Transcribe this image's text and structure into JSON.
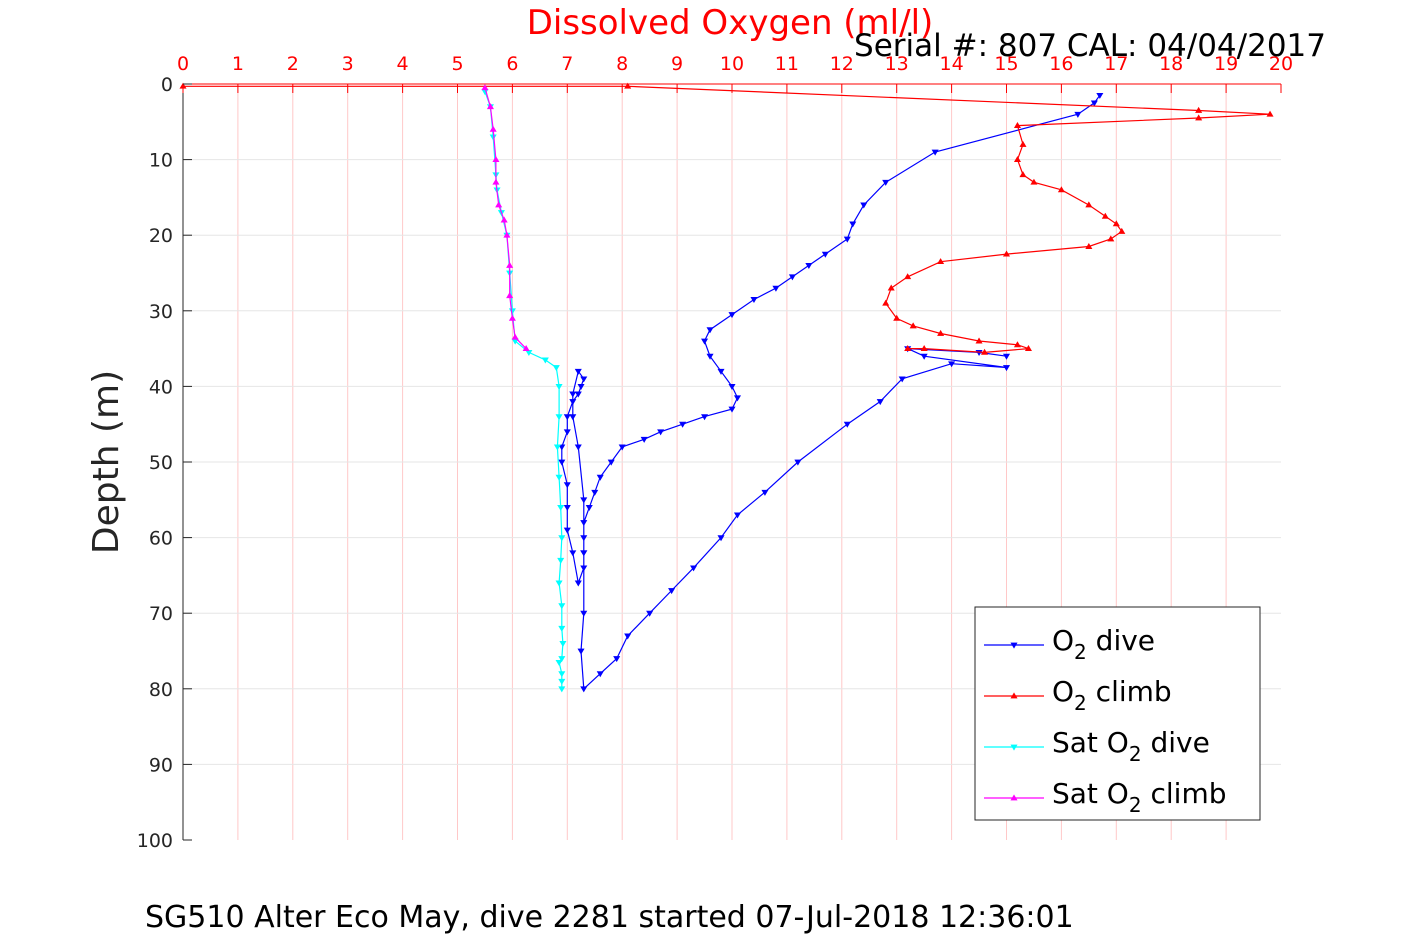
{
  "chart_data": {
    "type": "line",
    "title": "Dissolved Oxygen (ml/l)",
    "subtitle": "Serial #: 807  CAL: 04/04/2017",
    "ylabel": "Depth (m)",
    "footer": "SG510 Alter Eco May, dive 2281 started 07-Jul-2018 12:36:01",
    "xlim": [
      0,
      20
    ],
    "ylim": [
      0,
      100
    ],
    "y_reversed": true,
    "x_axis_position": "top",
    "xticks": [
      "0",
      "1",
      "2",
      "3",
      "4",
      "5",
      "6",
      "7",
      "8",
      "9",
      "10",
      "11",
      "12",
      "13",
      "14",
      "15",
      "16",
      "17",
      "18",
      "19",
      "20"
    ],
    "yticks": [
      "0",
      "10",
      "20",
      "30",
      "40",
      "50",
      "60",
      "70",
      "80",
      "90",
      "100"
    ],
    "grid": true,
    "legend_position": "bottom-right",
    "colors": {
      "title": "#ff0000",
      "x_axis": "#ff0000",
      "y_axis": "#262626",
      "grid": "#ffc8c8",
      "o2_dive": "#0000ff",
      "o2_climb": "#ff0000",
      "sat_dive": "#00ffff",
      "sat_climb": "#ff00ff"
    },
    "series": [
      {
        "key": "o2_dive",
        "legend": {
          "pre": "O",
          "sub": "2",
          "post": " dive"
        },
        "marker": "triangle-down",
        "x": [
          16.7,
          16.6,
          16.3,
          13.7,
          12.8,
          12.4,
          12.2,
          12.1,
          11.7,
          11.4,
          11.1,
          10.8,
          10.4,
          10.0,
          9.6,
          9.5,
          9.6,
          9.8,
          10.0,
          10.1,
          10.0,
          9.5,
          9.1,
          8.7,
          8.4,
          8.0,
          7.8,
          7.6,
          7.5,
          7.4,
          7.3,
          7.3,
          7.3,
          7.3,
          7.2,
          7.1,
          7.0,
          7.0,
          7.0,
          6.9,
          6.9,
          7.0,
          7.0,
          7.1,
          7.2,
          7.25,
          7.3,
          7.2,
          7.1,
          7.1,
          7.2,
          7.3,
          7.3,
          7.3,
          7.25,
          7.3,
          7.6,
          7.9,
          8.1,
          8.5,
          8.9,
          9.3,
          9.8,
          10.1,
          10.6,
          11.2,
          12.1,
          12.7,
          13.1,
          14.0,
          15.0,
          13.5,
          13.2,
          14.5,
          15.0
        ],
        "y": [
          1.5,
          2.5,
          4.0,
          9.0,
          13.0,
          16.0,
          18.5,
          20.5,
          22.5,
          24.0,
          25.5,
          27.0,
          28.5,
          30.5,
          32.5,
          34.0,
          36.0,
          38.0,
          40.0,
          41.5,
          43.0,
          44.0,
          45.0,
          46.0,
          47.0,
          48.0,
          50.0,
          52.0,
          54.0,
          56.0,
          58.0,
          60.0,
          62.0,
          64.0,
          66.0,
          62.0,
          59.0,
          56.0,
          53.0,
          50.0,
          48.0,
          46.0,
          44.0,
          42.0,
          41.0,
          40.0,
          39.0,
          38.0,
          41.0,
          44.0,
          48.0,
          55.0,
          62.0,
          70.0,
          75.0,
          80.0,
          78.0,
          76.0,
          73.0,
          70.0,
          67.0,
          64.0,
          60.0,
          57.0,
          54.0,
          50.0,
          45.0,
          42.0,
          39.0,
          37.0,
          37.5,
          36.0,
          35.0,
          35.5,
          36.0
        ]
      },
      {
        "key": "o2_climb",
        "legend": {
          "pre": "O",
          "sub": "2",
          "post": " climb"
        },
        "marker": "triangle-up",
        "x": [
          0,
          8.1,
          18.5,
          19.8,
          18.5,
          15.2,
          15.3,
          15.2,
          15.3,
          15.5,
          16.0,
          16.5,
          16.8,
          17.0,
          17.1,
          16.9,
          16.5,
          15.0,
          13.8,
          13.2,
          12.9,
          12.8,
          13.0,
          13.3,
          13.8,
          14.5,
          15.2,
          15.4,
          14.6,
          13.5,
          13.2
        ],
        "y": [
          0.3,
          0.3,
          3.5,
          4.0,
          4.5,
          5.5,
          8.0,
          10.0,
          12.0,
          13.0,
          14.0,
          16.0,
          17.5,
          18.5,
          19.5,
          20.5,
          21.5,
          22.5,
          23.5,
          25.5,
          27.0,
          29.0,
          31.0,
          32.0,
          33.0,
          34.0,
          34.5,
          35.0,
          35.5,
          35.0,
          35.0
        ]
      },
      {
        "key": "sat_dive",
        "legend": {
          "pre": "Sat O",
          "sub": "2",
          "post": " dive"
        },
        "marker": "triangle-down",
        "x": [
          5.5,
          5.6,
          5.65,
          5.7,
          5.72,
          5.8,
          5.9,
          5.95,
          6.0,
          6.05,
          6.3,
          6.6,
          6.8,
          6.85,
          6.85,
          6.82,
          6.85,
          6.88,
          6.9,
          6.88,
          6.85,
          6.9,
          6.9,
          6.92,
          6.9,
          6.85,
          6.9,
          6.9,
          6.9
        ],
        "y": [
          1.0,
          3.0,
          7.0,
          12.0,
          14.0,
          17.0,
          20.0,
          25.0,
          30.0,
          34.0,
          35.5,
          36.5,
          37.5,
          40.0,
          44.0,
          48.0,
          52.0,
          56.0,
          60.0,
          63.0,
          66.0,
          69.0,
          72.0,
          74.0,
          76.0,
          76.5,
          78.0,
          79.0,
          80.0
        ]
      },
      {
        "key": "sat_climb",
        "legend": {
          "pre": "Sat O",
          "sub": "2",
          "post": " climb"
        },
        "marker": "triangle-up",
        "x": [
          5.5,
          5.6,
          5.65,
          5.7,
          5.7,
          5.75,
          5.85,
          5.9,
          5.95,
          5.95,
          6.0,
          6.05,
          6.25
        ],
        "y": [
          0.5,
          3.0,
          6.0,
          10.0,
          13.0,
          16.0,
          18.0,
          20.0,
          24.0,
          28.0,
          31.0,
          33.5,
          35.0
        ]
      }
    ]
  }
}
